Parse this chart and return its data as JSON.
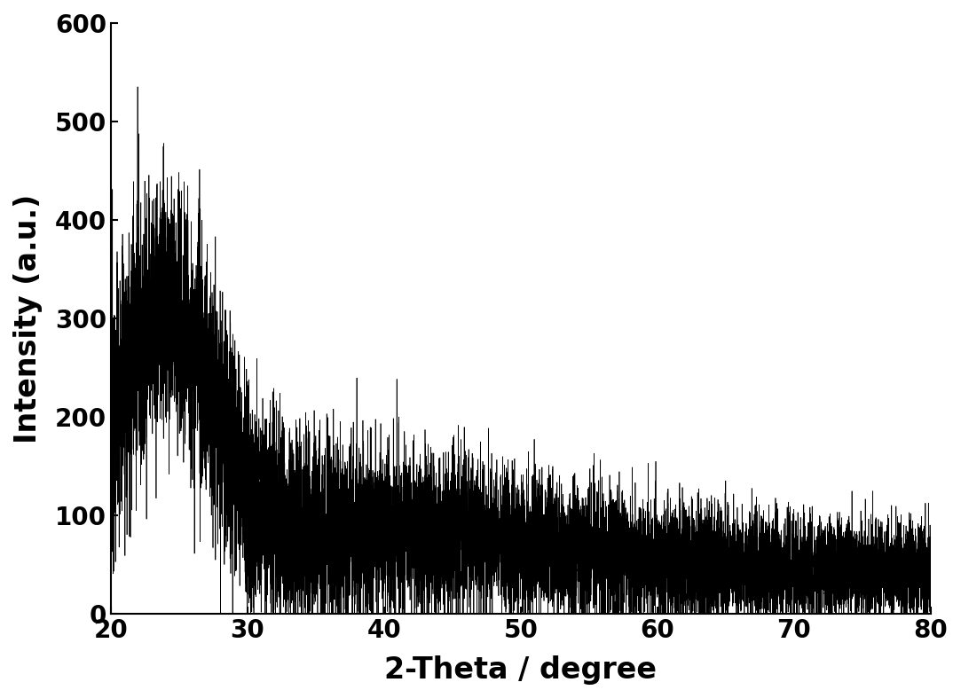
{
  "xlabel": "2-Theta / degree",
  "ylabel": "Intensity (a.u.)",
  "xlim": [
    20,
    80
  ],
  "ylim": [
    0,
    600
  ],
  "xticks": [
    20,
    30,
    40,
    50,
    60,
    70,
    80
  ],
  "yticks": [
    0,
    100,
    200,
    300,
    400,
    500,
    600
  ],
  "line_color": "#000000",
  "background_color": "#ffffff",
  "tick_fontsize": 20,
  "label_fontsize": 24,
  "line_width": 0.5,
  "seed": 12345,
  "n_points": 12000
}
